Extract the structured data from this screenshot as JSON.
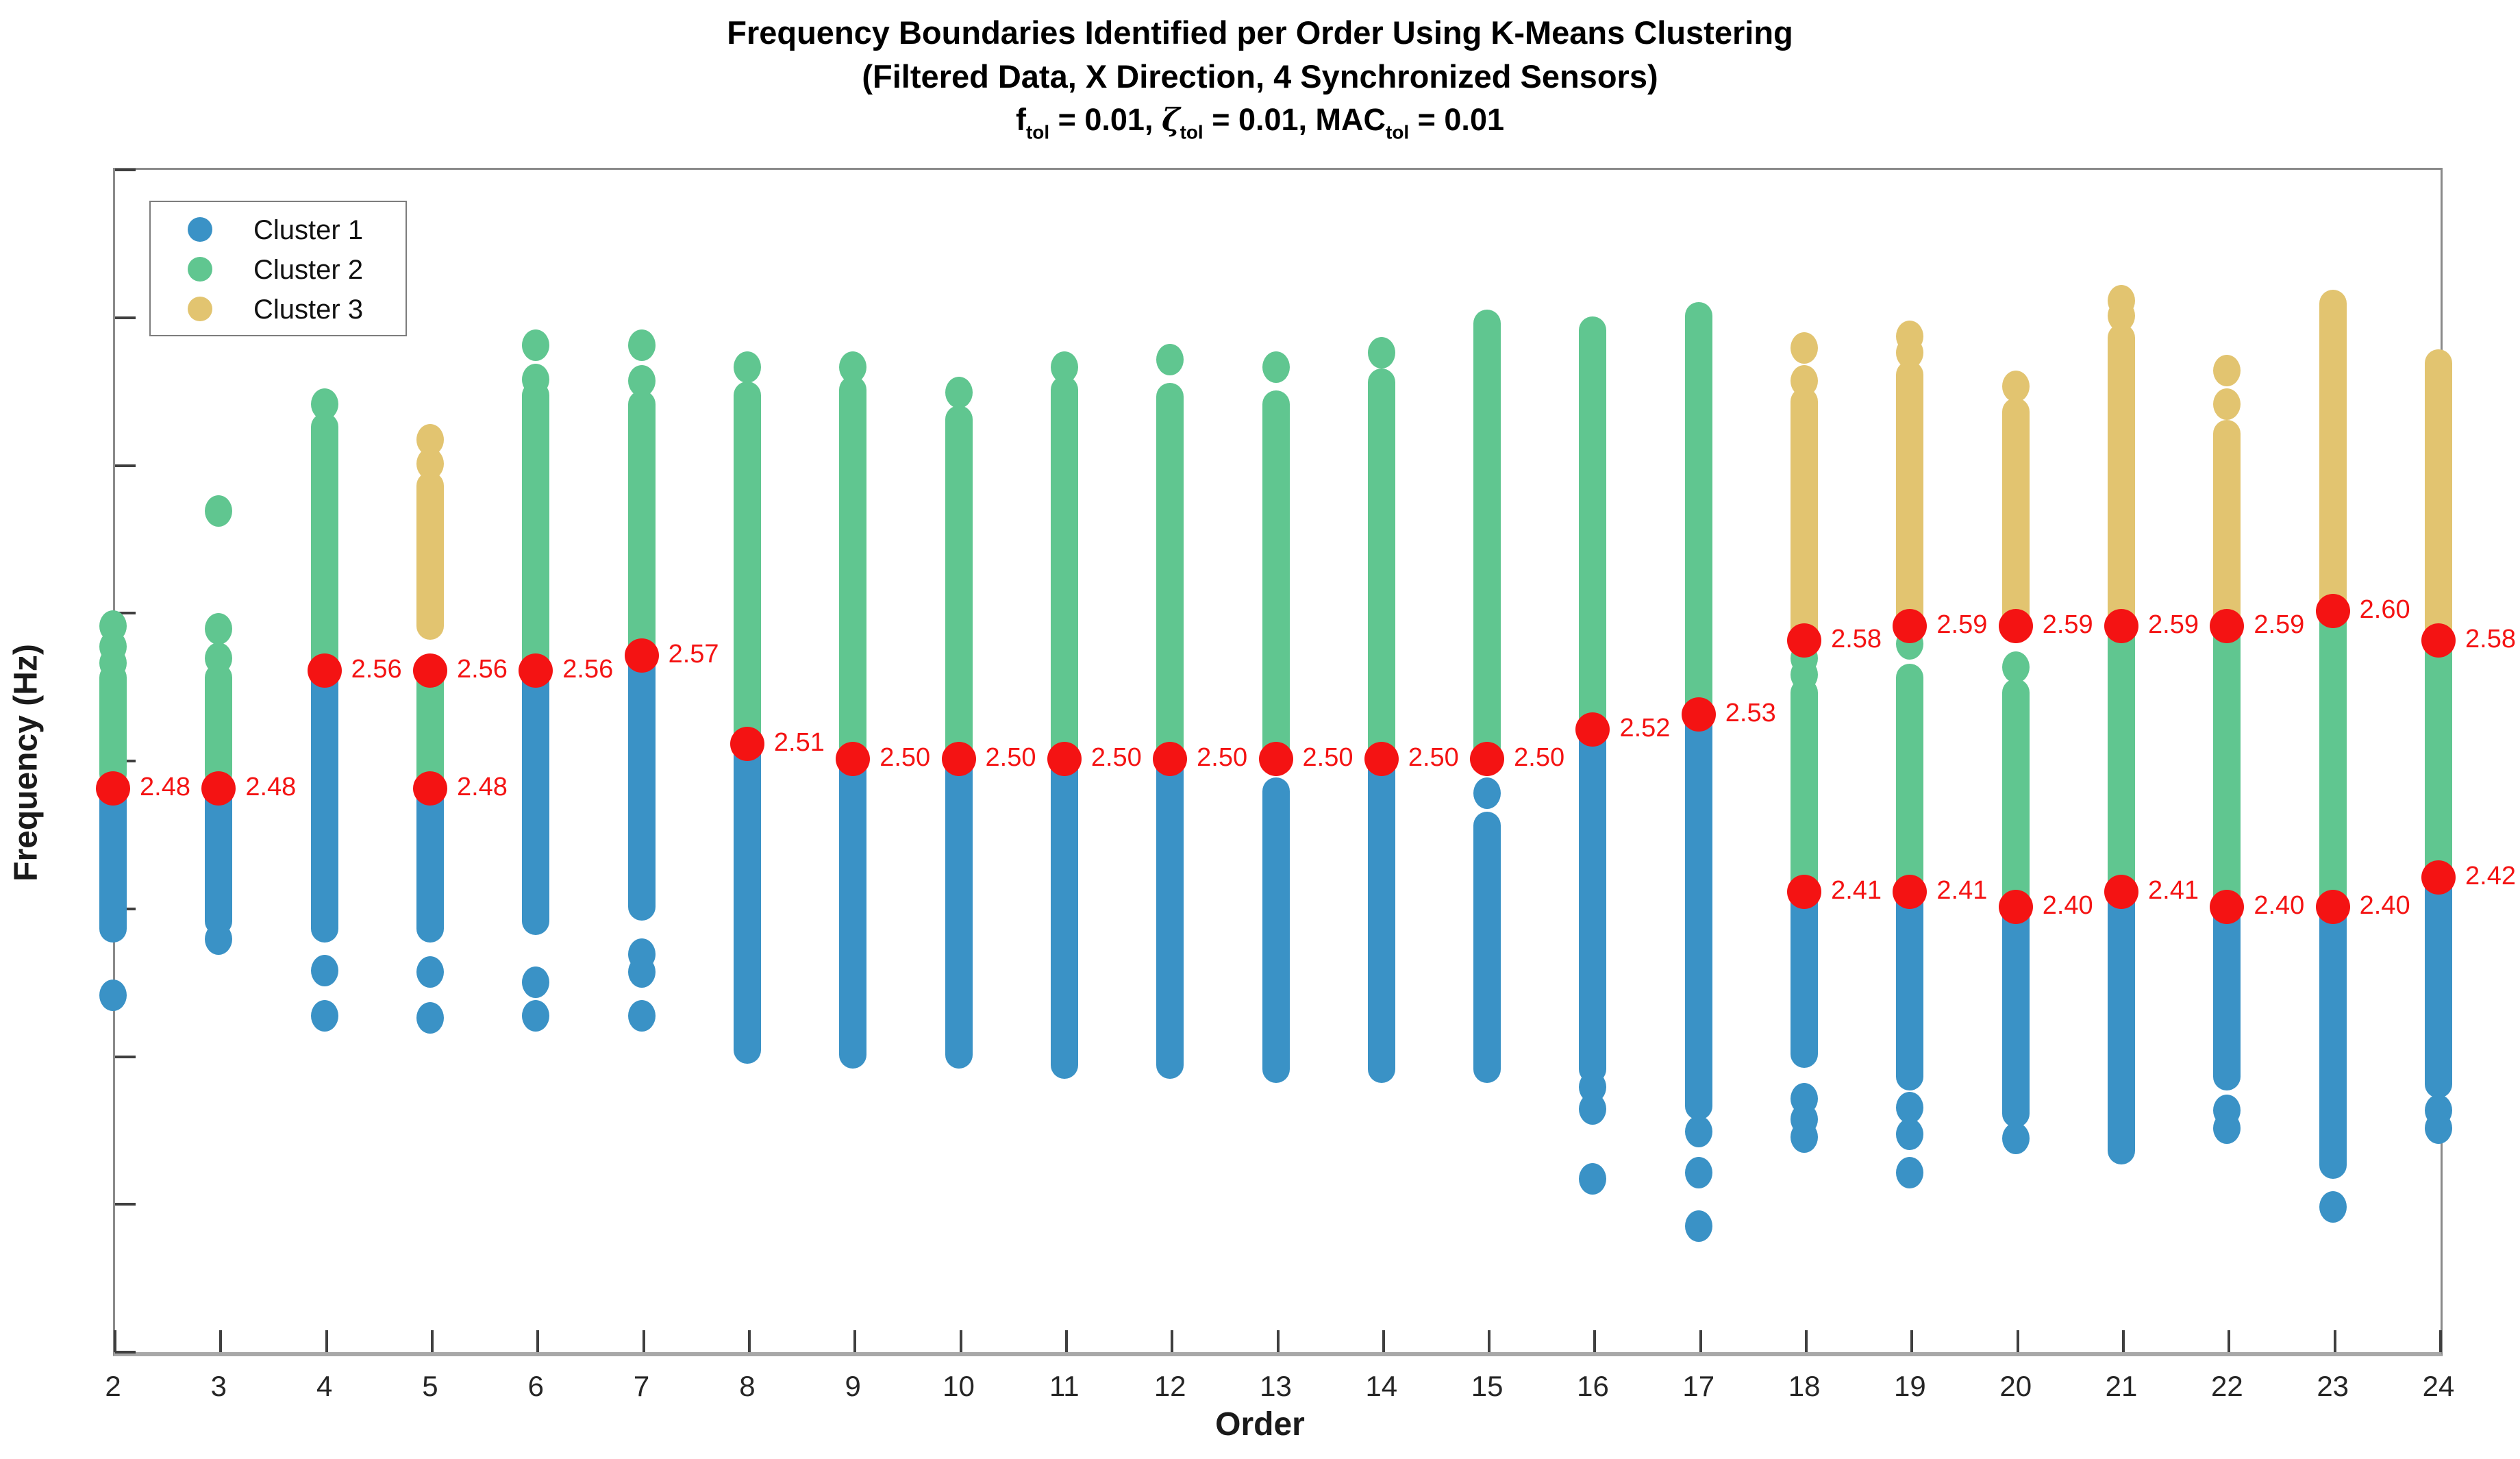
{
  "title": {
    "line1": "Frequency Boundaries Identified per Order Using K-Means Clustering",
    "line2": "(Filtered Data, X Direction, 4 Synchronized Sensors)",
    "line3_parts": [
      {
        "text": "f",
        "style": "normal"
      },
      {
        "text": "tol",
        "style": "sub"
      },
      {
        "text": " = 0.01, ",
        "style": "normal"
      },
      {
        "text": "ζ",
        "style": "italic"
      },
      {
        "text": "tol",
        "style": "sub"
      },
      {
        "text": " = 0.01, MAC",
        "style": "normal"
      },
      {
        "text": "tol",
        "style": "sub"
      },
      {
        "text": " = 0.01",
        "style": "normal"
      }
    ]
  },
  "chart_data": {
    "type": "scatter",
    "title": "Frequency Boundaries Identified per Order Using K-Means Clustering",
    "xlabel": "Order",
    "ylabel": "Frequency (Hz)",
    "xlim": [
      2,
      24
    ],
    "ylim": [
      2.1,
      2.9
    ],
    "xticks": [
      2,
      3,
      4,
      5,
      6,
      7,
      8,
      9,
      10,
      11,
      12,
      13,
      14,
      15,
      16,
      17,
      18,
      19,
      20,
      21,
      22,
      23,
      24
    ],
    "yticks": [
      "2.1",
      "2.2",
      "2.3",
      "2.4",
      "2.5",
      "2.6",
      "2.7",
      "2.8",
      "2.9"
    ],
    "grid": false,
    "legend": {
      "position": "top-left",
      "entries": [
        {
          "label": "Cluster 1",
          "color": "#3A92C6"
        },
        {
          "label": "Cluster 2",
          "color": "#60C690"
        },
        {
          "label": "Cluster 3",
          "color": "#E2C470"
        }
      ]
    },
    "colors": {
      "cluster1": "#3A92C6",
      "cluster2": "#60C690",
      "cluster3": "#E2C470",
      "boundary": "#F41313"
    },
    "series": [
      {
        "order": 2,
        "cluster2": {
          "range": [
            2.49,
            2.555
          ],
          "outliers": [
            2.565,
            2.576,
            2.59
          ]
        },
        "cluster1": {
          "range": [
            2.385,
            2.475
          ],
          "outliers": [
            2.34
          ]
        },
        "boundaries": [
          {
            "value": 2.48,
            "label": "2.48"
          }
        ]
      },
      {
        "order": 3,
        "cluster2": {
          "range": [
            2.49,
            2.555
          ],
          "outliers": [
            2.568,
            2.588,
            2.668
          ]
        },
        "cluster1": {
          "range": [
            2.39,
            2.475
          ],
          "outliers": [
            2.378
          ]
        },
        "boundaries": [
          {
            "value": 2.48,
            "label": "2.48"
          }
        ]
      },
      {
        "order": 4,
        "cluster2": {
          "range": [
            2.56,
            2.725
          ],
          "outliers": [
            2.74
          ]
        },
        "cluster1": {
          "range": [
            2.385,
            2.555
          ],
          "outliers": [
            2.357,
            2.326
          ]
        },
        "boundaries": [
          {
            "value": 2.56,
            "label": "2.56"
          }
        ]
      },
      {
        "order": 5,
        "cluster3": {
          "range": [
            2.59,
            2.685
          ],
          "outliers": [
            2.7,
            2.716
          ]
        },
        "cluster2": {
          "range": [
            2.487,
            2.556
          ],
          "outliers": []
        },
        "cluster1": {
          "range": [
            2.385,
            2.475
          ],
          "outliers": [
            2.356,
            2.325
          ]
        },
        "boundaries": [
          {
            "value": 2.56,
            "label": "2.56"
          },
          {
            "value": 2.48,
            "label": "2.48"
          }
        ]
      },
      {
        "order": 6,
        "cluster2": {
          "range": [
            2.56,
            2.746
          ],
          "outliers": [
            2.757,
            2.78
          ]
        },
        "cluster1": {
          "range": [
            2.39,
            2.556
          ],
          "outliers": [
            2.349,
            2.326
          ]
        },
        "boundaries": [
          {
            "value": 2.56,
            "label": "2.56"
          }
        ]
      },
      {
        "order": 7,
        "cluster2": {
          "range": [
            2.57,
            2.74
          ],
          "outliers": [
            2.756,
            2.78
          ]
        },
        "cluster1": {
          "range": [
            2.4,
            2.565
          ],
          "outliers": [
            2.368,
            2.356,
            2.326
          ]
        },
        "boundaries": [
          {
            "value": 2.57,
            "label": "2.57"
          }
        ]
      },
      {
        "order": 8,
        "cluster2": {
          "range": [
            2.51,
            2.746
          ],
          "outliers": [
            2.765
          ]
        },
        "cluster1": {
          "range": [
            2.303,
            2.506
          ],
          "outliers": []
        },
        "boundaries": [
          {
            "value": 2.51,
            "label": "2.51"
          }
        ]
      },
      {
        "order": 9,
        "cluster2": {
          "range": [
            2.5,
            2.75
          ],
          "outliers": [
            2.765
          ]
        },
        "cluster1": {
          "range": [
            2.3,
            2.5
          ],
          "outliers": []
        },
        "boundaries": [
          {
            "value": 2.5,
            "label": "2.50"
          }
        ]
      },
      {
        "order": 10,
        "cluster2": {
          "range": [
            2.5,
            2.73
          ],
          "outliers": [
            2.748
          ]
        },
        "cluster1": {
          "range": [
            2.3,
            2.5
          ],
          "outliers": []
        },
        "boundaries": [
          {
            "value": 2.5,
            "label": "2.50"
          }
        ]
      },
      {
        "order": 11,
        "cluster2": {
          "range": [
            2.5,
            2.75
          ],
          "outliers": [
            2.765
          ]
        },
        "cluster1": {
          "range": [
            2.293,
            2.5
          ],
          "outliers": []
        },
        "boundaries": [
          {
            "value": 2.5,
            "label": "2.50"
          }
        ]
      },
      {
        "order": 12,
        "cluster2": {
          "range": [
            2.5,
            2.745
          ],
          "outliers": [
            2.77
          ]
        },
        "cluster1": {
          "range": [
            2.293,
            2.5
          ],
          "outliers": []
        },
        "boundaries": [
          {
            "value": 2.5,
            "label": "2.50"
          }
        ]
      },
      {
        "order": 13,
        "cluster2": {
          "range": [
            2.5,
            2.74
          ],
          "outliers": [
            2.765
          ]
        },
        "cluster1": {
          "range": [
            2.29,
            2.478
          ],
          "outliers": []
        },
        "boundaries": [
          {
            "value": 2.5,
            "label": "2.50"
          }
        ]
      },
      {
        "order": 14,
        "cluster2": {
          "range": [
            2.5,
            2.755
          ],
          "outliers": [
            2.775
          ]
        },
        "cluster1": {
          "range": [
            2.29,
            2.5
          ],
          "outliers": []
        },
        "boundaries": [
          {
            "value": 2.5,
            "label": "2.50"
          }
        ]
      },
      {
        "order": 15,
        "cluster2": {
          "range": [
            2.5,
            2.795
          ],
          "outliers": []
        },
        "cluster1": {
          "range": [
            2.29,
            2.455
          ],
          "outliers": [
            2.477
          ]
        },
        "boundaries": [
          {
            "value": 2.5,
            "label": "2.50"
          }
        ]
      },
      {
        "order": 16,
        "cluster2": {
          "range": [
            2.52,
            2.79
          ],
          "outliers": []
        },
        "cluster1": {
          "range": [
            2.29,
            2.515
          ],
          "outliers": [
            2.278,
            2.263,
            2.216
          ]
        },
        "boundaries": [
          {
            "value": 2.52,
            "label": "2.52"
          }
        ]
      },
      {
        "order": 17,
        "cluster2": {
          "range": [
            2.53,
            2.8
          ],
          "outliers": []
        },
        "cluster1": {
          "range": [
            2.265,
            2.525
          ],
          "outliers": [
            2.248,
            2.22,
            2.184
          ]
        },
        "boundaries": [
          {
            "value": 2.53,
            "label": "2.53"
          }
        ]
      },
      {
        "order": 18,
        "cluster3": {
          "range": [
            2.585,
            2.742
          ],
          "outliers": [
            2.756,
            2.778
          ]
        },
        "cluster2": {
          "range": [
            2.415,
            2.545
          ],
          "outliers": [
            2.557,
            2.568
          ]
        },
        "cluster1": {
          "range": [
            2.3,
            2.405
          ],
          "outliers": [
            2.27,
            2.256,
            2.244
          ]
        },
        "boundaries": [
          {
            "value": 2.58,
            "label": "2.58"
          },
          {
            "value": 2.41,
            "label": "2.41"
          }
        ]
      },
      {
        "order": 19,
        "cluster3": {
          "range": [
            2.595,
            2.76
          ],
          "outliers": [
            2.775,
            2.786
          ]
        },
        "cluster2": {
          "range": [
            2.415,
            2.555
          ],
          "outliers": [
            2.578,
            2.588
          ]
        },
        "cluster1": {
          "range": [
            2.285,
            2.405
          ],
          "outliers": [
            2.264,
            2.246,
            2.22
          ]
        },
        "boundaries": [
          {
            "value": 2.59,
            "label": "2.59"
          },
          {
            "value": 2.41,
            "label": "2.41"
          }
        ]
      },
      {
        "order": 20,
        "cluster3": {
          "range": [
            2.595,
            2.735
          ],
          "outliers": [
            2.752
          ]
        },
        "cluster2": {
          "range": [
            2.405,
            2.545
          ],
          "outliers": [
            2.562
          ]
        },
        "cluster1": {
          "range": [
            2.26,
            2.4
          ],
          "outliers": [
            2.243
          ]
        },
        "boundaries": [
          {
            "value": 2.59,
            "label": "2.59"
          },
          {
            "value": 2.4,
            "label": "2.40"
          }
        ]
      },
      {
        "order": 21,
        "cluster3": {
          "range": [
            2.595,
            2.785
          ],
          "outliers": [
            2.8,
            2.81
          ]
        },
        "cluster2": {
          "range": [
            2.415,
            2.585
          ],
          "outliers": []
        },
        "cluster1": {
          "range": [
            2.235,
            2.405
          ],
          "outliers": []
        },
        "boundaries": [
          {
            "value": 2.59,
            "label": "2.59"
          },
          {
            "value": 2.41,
            "label": "2.41"
          }
        ]
      },
      {
        "order": 22,
        "cluster3": {
          "range": [
            2.595,
            2.72
          ],
          "outliers": [
            2.74,
            2.763
          ]
        },
        "cluster2": {
          "range": [
            2.405,
            2.585
          ],
          "outliers": []
        },
        "cluster1": {
          "range": [
            2.285,
            2.4
          ],
          "outliers": [
            2.262,
            2.25
          ]
        },
        "boundaries": [
          {
            "value": 2.59,
            "label": "2.59"
          },
          {
            "value": 2.4,
            "label": "2.40"
          }
        ]
      },
      {
        "order": 23,
        "cluster3": {
          "range": [
            2.6,
            2.808
          ],
          "outliers": []
        },
        "cluster2": {
          "range": [
            2.405,
            2.595
          ],
          "outliers": []
        },
        "cluster1": {
          "range": [
            2.225,
            2.4
          ],
          "outliers": [
            2.197
          ]
        },
        "boundaries": [
          {
            "value": 2.6,
            "label": "2.60"
          },
          {
            "value": 2.4,
            "label": "2.40"
          }
        ]
      },
      {
        "order": 24,
        "cluster3": {
          "range": [
            2.585,
            2.768
          ],
          "outliers": []
        },
        "cluster2": {
          "range": [
            2.425,
            2.575
          ],
          "outliers": []
        },
        "cluster1": {
          "range": [
            2.28,
            2.415
          ],
          "outliers": [
            2.262,
            2.25
          ]
        },
        "boundaries": [
          {
            "value": 2.58,
            "label": "2.58"
          },
          {
            "value": 2.42,
            "label": "2.42"
          }
        ]
      }
    ]
  }
}
